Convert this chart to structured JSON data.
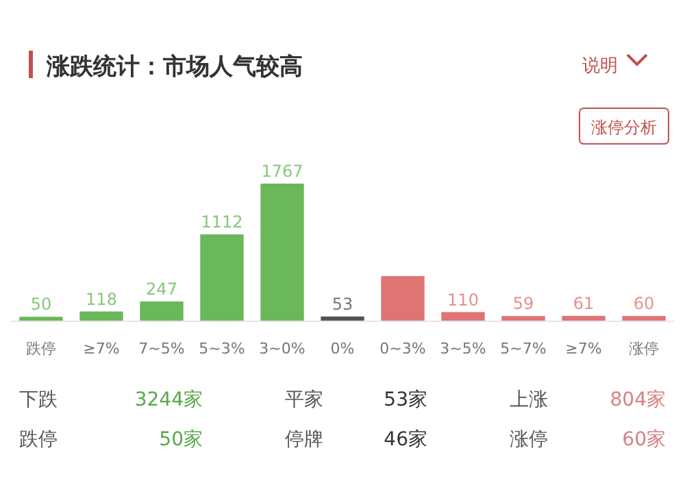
{
  "chart_data": {
    "type": "bar",
    "title": "涨跌统计：市场人气较高",
    "categories": [
      "跌停",
      "≥7%",
      "7~5%",
      "5~3%",
      "3~0%",
      "0%",
      "0~3%",
      "3~5%",
      "5~7%",
      "≥7%",
      "涨停"
    ],
    "values": [
      50,
      118,
      247,
      1112,
      1767,
      53,
      574,
      110,
      59,
      61,
      60
    ],
    "value_labels": [
      "50",
      "118",
      "247",
      "1112",
      "1767",
      "53",
      null,
      "110",
      "59",
      "61",
      "60"
    ],
    "colors": [
      "#6ab85a",
      "#6ab85a",
      "#6ab85a",
      "#6ab85a",
      "#6ab85a",
      "#555555",
      "#e07474",
      "#e07474",
      "#e07474",
      "#e07474",
      "#e07474"
    ],
    "annotations": [
      "说明",
      "涨停分析",
      "下跌",
      "3244家",
      "平家",
      "53家",
      "上涨",
      "804家",
      "跌停",
      "50家",
      "停牌",
      "46家",
      "涨停",
      "60家"
    ]
  }
}
